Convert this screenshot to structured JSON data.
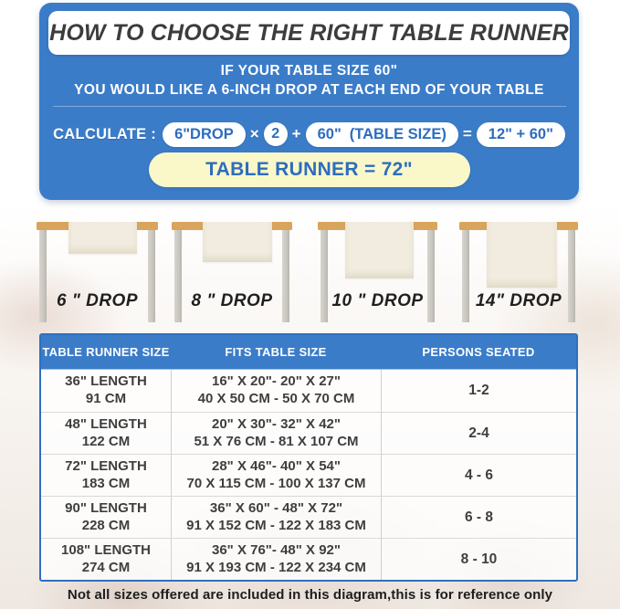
{
  "colors": {
    "panel_blue": "#3b7cc9",
    "pill_text_blue": "#2d6dbe",
    "result_yellow": "#faf8c9",
    "table_border_blue": "#2e6fc0",
    "tabletop_wood": "#d9a45c",
    "runner_cream": "#f1ecdf",
    "leg_gray": "#c6c3bc"
  },
  "banner": {
    "title": "HOW TO CHOOSE THE RIGHT TABLE RUNNER",
    "intro_line1": "IF YOUR TABLE SIZE 60\"",
    "intro_line2": "YOU WOULD LIKE A 6-INCH DROP AT EACH END OF YOUR TABLE",
    "calc": {
      "label": "CALCULATE :",
      "drop_pill": "6\"DROP",
      "op_multiply": "×",
      "multiplier": "2",
      "op_plus": "+",
      "table_size_value": "60\"",
      "table_size_note": "(TABLE SIZE)",
      "op_equals": "=",
      "result_pill": "12\" + 60\""
    },
    "result_banner": "TABLE RUNNER = 72\""
  },
  "drops": {
    "items": [
      {
        "label": "6 \" DROP"
      },
      {
        "label": "8 \" DROP"
      },
      {
        "label": "10 \" DROP"
      },
      {
        "label": "14\" DROP"
      }
    ]
  },
  "size_table": {
    "headers": [
      "TABLE RUNNER SIZE",
      "FITS TABLE SIZE",
      "PERSONS SEATED"
    ],
    "rows": [
      {
        "runner_in": "36\" LENGTH",
        "runner_cm": "91 CM",
        "fits_in": "16\" X 20\"- 20\" X 27\"",
        "fits_cm": "40 X 50 CM - 50 X 70 CM",
        "persons": "1-2"
      },
      {
        "runner_in": "48\" LENGTH",
        "runner_cm": "122 CM",
        "fits_in": "20\" X 30\"- 32\" X 42\"",
        "fits_cm": "51 X 76 CM - 81 X 107 CM",
        "persons": "2-4"
      },
      {
        "runner_in": "72\" LENGTH",
        "runner_cm": "183 CM",
        "fits_in": "28\" X 46\"- 40\" X 54\"",
        "fits_cm": "70 X 115 CM - 100 X 137 CM",
        "persons": "4 - 6"
      },
      {
        "runner_in": "90\" LENGTH",
        "runner_cm": "228 CM",
        "fits_in": "36\" X 60\" - 48\" X 72\"",
        "fits_cm": "91 X 152 CM - 122 X 183 CM",
        "persons": "6 - 8"
      },
      {
        "runner_in": "108\" LENGTH",
        "runner_cm": "274 CM",
        "fits_in": "36\" X 76\"- 48\" X 92\"",
        "fits_cm": "91 X 193 CM - 122 X 234 CM",
        "persons": "8 - 10"
      }
    ]
  },
  "footer": {
    "note": "Not all sizes offered are included in this diagram,this is for reference only"
  }
}
